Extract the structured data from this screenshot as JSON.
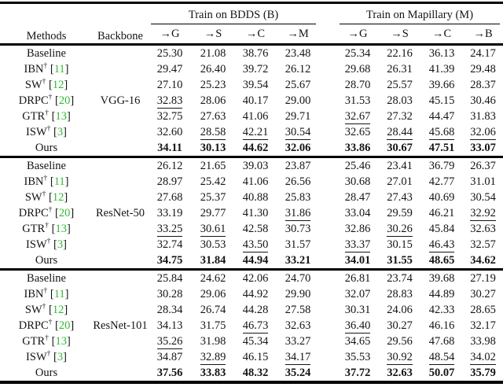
{
  "page": {
    "background": "#ffffff"
  },
  "table": {
    "title_row": {
      "methods": "Methods",
      "backbone": "Backbone",
      "groups": [
        {
          "title": "Train on BDDS (B)",
          "cols": [
            "→G",
            "→S",
            "→C",
            "→M"
          ]
        },
        {
          "title": "Train on Mapillary (M)",
          "cols": [
            "→G",
            "→S",
            "→C",
            "→B"
          ]
        }
      ]
    },
    "dagger_symbol": "†",
    "citation_brackets": [
      "[",
      "]"
    ],
    "colors": {
      "citation_green": "#2ebc2e",
      "text": "#141414",
      "rule": "#000000"
    },
    "blocks": [
      {
        "backbone": "VGG-16",
        "rows": [
          {
            "method": "Baseline",
            "dagger": false,
            "cite": null,
            "bold_all": false,
            "underline": [],
            "values": [
              "25.30",
              "21.08",
              "38.76",
              "23.48",
              "25.34",
              "22.16",
              "36.13",
              "24.17"
            ]
          },
          {
            "method": "IBN",
            "dagger": true,
            "cite": "11",
            "bold_all": false,
            "underline": [],
            "values": [
              "29.47",
              "26.40",
              "39.72",
              "26.12",
              "29.68",
              "26.31",
              "41.39",
              "29.48"
            ]
          },
          {
            "method": "SW",
            "dagger": true,
            "cite": "12",
            "bold_all": false,
            "underline": [],
            "values": [
              "27.10",
              "25.23",
              "39.54",
              "25.67",
              "28.70",
              "25.57",
              "39.66",
              "28.37"
            ]
          },
          {
            "method": "DRPC",
            "dagger": true,
            "cite": "20",
            "bold_all": false,
            "underline": [
              0
            ],
            "values": [
              "32.83",
              "28.06",
              "40.17",
              "29.00",
              "31.53",
              "28.03",
              "45.15",
              "30.46"
            ]
          },
          {
            "method": "GTR",
            "dagger": true,
            "cite": "13",
            "bold_all": false,
            "underline": [
              4
            ],
            "values": [
              "32.75",
              "27.63",
              "41.06",
              "29.71",
              "32.67",
              "27.32",
              "44.47",
              "31.83"
            ]
          },
          {
            "method": "ISW",
            "dagger": true,
            "cite": "3",
            "bold_all": false,
            "underline": [
              1,
              2,
              3,
              5,
              6,
              7
            ],
            "values": [
              "32.60",
              "28.58",
              "42.21",
              "30.54",
              "32.65",
              "28.44",
              "45.68",
              "32.06"
            ]
          },
          {
            "method": "Ours",
            "dagger": false,
            "cite": null,
            "bold_all": true,
            "underline": [],
            "values": [
              "34.11",
              "30.13",
              "44.62",
              "32.06",
              "33.86",
              "30.67",
              "47.51",
              "33.07"
            ]
          }
        ]
      },
      {
        "backbone": "ResNet-50",
        "rows": [
          {
            "method": "Baseline",
            "dagger": false,
            "cite": null,
            "bold_all": false,
            "underline": [],
            "values": [
              "26.12",
              "21.65",
              "39.03",
              "23.87",
              "25.46",
              "23.41",
              "36.79",
              "26.37"
            ]
          },
          {
            "method": "IBN",
            "dagger": true,
            "cite": "11",
            "bold_all": false,
            "underline": [],
            "values": [
              "28.97",
              "25.42",
              "41.06",
              "26.56",
              "30.68",
              "27.01",
              "42.77",
              "31.01"
            ]
          },
          {
            "method": "SW",
            "dagger": true,
            "cite": "12",
            "bold_all": false,
            "underline": [],
            "values": [
              "27.68",
              "25.37",
              "40.88",
              "25.83",
              "28.47",
              "27.43",
              "40.69",
              "30.54"
            ]
          },
          {
            "method": "DRPC",
            "dagger": true,
            "cite": "20",
            "bold_all": false,
            "underline": [
              3,
              7
            ],
            "values": [
              "33.19",
              "29.77",
              "41.30",
              "31.86",
              "33.04",
              "29.59",
              "46.21",
              "32.92"
            ]
          },
          {
            "method": "GTR",
            "dagger": true,
            "cite": "13",
            "bold_all": false,
            "underline": [
              0,
              1,
              5
            ],
            "values": [
              "33.25",
              "30.61",
              "42.58",
              "30.73",
              "32.86",
              "30.26",
              "45.84",
              "32.63"
            ]
          },
          {
            "method": "ISW",
            "dagger": true,
            "cite": "3",
            "bold_all": false,
            "underline": [
              2,
              4,
              6
            ],
            "values": [
              "32.74",
              "30.53",
              "43.50",
              "31.57",
              "33.37",
              "30.15",
              "46.43",
              "32.57"
            ]
          },
          {
            "method": "Ours",
            "dagger": false,
            "cite": null,
            "bold_all": true,
            "underline": [],
            "values": [
              "34.75",
              "31.84",
              "44.94",
              "33.21",
              "34.01",
              "31.55",
              "48.65",
              "34.62"
            ]
          }
        ]
      },
      {
        "backbone": "ResNet-101",
        "rows": [
          {
            "method": "Baseline",
            "dagger": false,
            "cite": null,
            "bold_all": false,
            "underline": [],
            "values": [
              "25.84",
              "24.62",
              "42.06",
              "24.70",
              "26.81",
              "23.74",
              "39.68",
              "27.19"
            ]
          },
          {
            "method": "IBN",
            "dagger": true,
            "cite": "11",
            "bold_all": false,
            "underline": [],
            "values": [
              "30.28",
              "29.06",
              "44.92",
              "29.90",
              "32.07",
              "28.83",
              "44.89",
              "30.27"
            ]
          },
          {
            "method": "SW",
            "dagger": true,
            "cite": "12",
            "bold_all": false,
            "underline": [],
            "values": [
              "28.34",
              "26.74",
              "44.28",
              "27.58",
              "30.31",
              "24.06",
              "42.33",
              "28.65"
            ]
          },
          {
            "method": "DRPC",
            "dagger": true,
            "cite": "20",
            "bold_all": false,
            "underline": [
              2,
              4
            ],
            "values": [
              "34.13",
              "31.75",
              "46.73",
              "32.63",
              "36.40",
              "30.27",
              "46.16",
              "32.17"
            ]
          },
          {
            "method": "GTR",
            "dagger": true,
            "cite": "13",
            "bold_all": false,
            "underline": [
              0
            ],
            "values": [
              "35.26",
              "31.98",
              "45.34",
              "33.27",
              "34.65",
              "29.56",
              "47.68",
              "33.98"
            ]
          },
          {
            "method": "ISW",
            "dagger": true,
            "cite": "3",
            "bold_all": false,
            "underline": [
              1,
              3,
              5,
              6,
              7
            ],
            "values": [
              "34.87",
              "32.89",
              "46.15",
              "34.17",
              "35.53",
              "30.92",
              "48.54",
              "34.02"
            ]
          },
          {
            "method": "Ours",
            "dagger": false,
            "cite": null,
            "bold_all": true,
            "underline": [],
            "values": [
              "37.56",
              "33.83",
              "48.32",
              "35.24",
              "37.72",
              "32.63",
              "50.07",
              "35.79"
            ]
          }
        ]
      }
    ]
  }
}
